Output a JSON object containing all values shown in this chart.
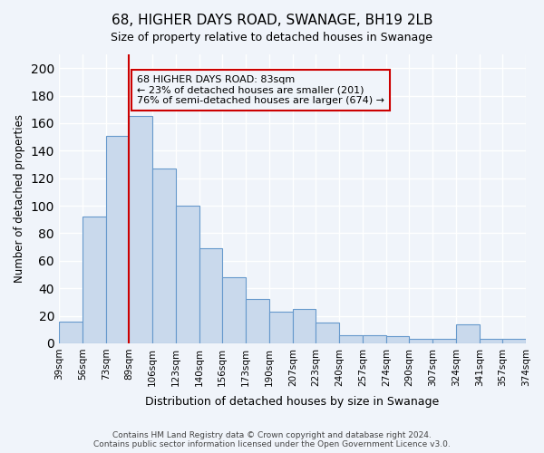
{
  "title": "68, HIGHER DAYS ROAD, SWANAGE, BH19 2LB",
  "subtitle": "Size of property relative to detached houses in Swanage",
  "xlabel": "Distribution of detached houses by size in Swanage",
  "ylabel": "Number of detached properties",
  "bins": [
    39,
    56,
    73,
    89,
    106,
    123,
    140,
    156,
    173,
    190,
    207,
    223,
    240,
    257,
    274,
    290,
    307,
    324,
    341,
    357,
    374
  ],
  "bin_labels": [
    "39sqm",
    "56sqm",
    "73sqm",
    "89sqm",
    "106sqm",
    "123sqm",
    "140sqm",
    "156sqm",
    "173sqm",
    "190sqm",
    "207sqm",
    "223sqm",
    "240sqm",
    "257sqm",
    "274sqm",
    "290sqm",
    "307sqm",
    "324sqm",
    "341sqm",
    "357sqm",
    "374sqm"
  ],
  "counts": [
    16,
    92,
    151,
    165,
    127,
    100,
    69,
    48,
    32,
    23,
    25,
    15,
    6,
    6,
    5,
    3,
    3,
    14,
    3,
    3
  ],
  "bar_color": "#c9d9ec",
  "bar_edge_color": "#6699cc",
  "property_size": 83,
  "vline_color": "#cc0000",
  "vline_x": 89,
  "annotation_text": "68 HIGHER DAYS ROAD: 83sqm\n← 23% of detached houses are smaller (201)\n76% of semi-detached houses are larger (674) →",
  "annotation_box_color": "#cc0000",
  "ylim": [
    0,
    210
  ],
  "yticks": [
    0,
    20,
    40,
    60,
    80,
    100,
    120,
    140,
    160,
    180,
    200
  ],
  "background_color": "#f0f4fa",
  "grid_color": "#ffffff",
  "footer": "Contains HM Land Registry data © Crown copyright and database right 2024.\nContains public sector information licensed under the Open Government Licence v3.0."
}
